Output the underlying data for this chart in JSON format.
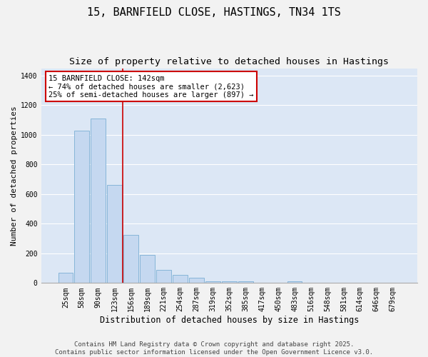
{
  "title": "15, BARNFIELD CLOSE, HASTINGS, TN34 1TS",
  "subtitle": "Size of property relative to detached houses in Hastings",
  "xlabel": "Distribution of detached houses by size in Hastings",
  "ylabel": "Number of detached properties",
  "categories": [
    "25sqm",
    "58sqm",
    "90sqm",
    "123sqm",
    "156sqm",
    "189sqm",
    "221sqm",
    "254sqm",
    "287sqm",
    "319sqm",
    "352sqm",
    "385sqm",
    "417sqm",
    "450sqm",
    "483sqm",
    "516sqm",
    "548sqm",
    "581sqm",
    "614sqm",
    "646sqm",
    "679sqm"
  ],
  "values": [
    68,
    1030,
    1110,
    660,
    325,
    190,
    90,
    55,
    35,
    10,
    10,
    10,
    0,
    0,
    10,
    0,
    0,
    0,
    0,
    0,
    0
  ],
  "bar_color": "#c5d8f0",
  "bar_edge_color": "#7bafd4",
  "background_color": "#dce7f5",
  "grid_color": "#ffffff",
  "vline_color": "#cc0000",
  "annotation_text": "15 BARNFIELD CLOSE: 142sqm\n← 74% of detached houses are smaller (2,623)\n25% of semi-detached houses are larger (897) →",
  "annotation_box_color": "#cc0000",
  "footer_text": "Contains HM Land Registry data © Crown copyright and database right 2025.\nContains public sector information licensed under the Open Government Licence v3.0.",
  "fig_bg_color": "#f2f2f2",
  "ylim": [
    0,
    1450
  ],
  "title_fontsize": 11,
  "subtitle_fontsize": 9.5,
  "xlabel_fontsize": 8.5,
  "ylabel_fontsize": 8,
  "tick_fontsize": 7,
  "annotation_fontsize": 7.5,
  "footer_fontsize": 6.5
}
